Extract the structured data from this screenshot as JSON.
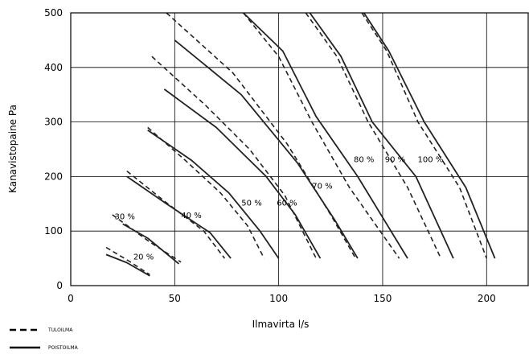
{
  "chart_data": {
    "type": "line",
    "title": "",
    "xlabel": "Ilmavirta l/s",
    "ylabel": "Kanavistopaine Pa",
    "xlim": [
      0,
      220
    ],
    "ylim": [
      0,
      500
    ],
    "x_ticks": [
      0,
      50,
      100,
      150,
      200
    ],
    "y_ticks": [
      0,
      100,
      200,
      300,
      400,
      500
    ],
    "x_tick_labels": [
      "0",
      "50",
      "100",
      "150",
      "200"
    ],
    "y_tick_labels": [
      "0",
      "100",
      "200",
      "300",
      "400",
      "500"
    ],
    "grid": true,
    "legend_position": "bottom-left",
    "legend": [
      {
        "label": "TULOILMA",
        "style": "dashed",
        "color": "#000000"
      },
      {
        "label": "POISTOILMA",
        "style": "solid",
        "color": "#000000"
      }
    ],
    "series": [
      {
        "name": "TULOILMA",
        "curve": "20 %",
        "style": "dashed",
        "x": [
          17,
          28,
          38
        ],
        "y": [
          70,
          45,
          20
        ]
      },
      {
        "name": "POISTOILMA",
        "curve": "20 %",
        "style": "solid",
        "x": [
          17,
          27,
          38
        ],
        "y": [
          57,
          42,
          18
        ]
      },
      {
        "name": "TULOILMA",
        "curve": "30 %",
        "style": "dashed",
        "x": [
          20,
          38,
          53
        ],
        "y": [
          130,
          80,
          43
        ]
      },
      {
        "name": "POISTOILMA",
        "curve": "30 %",
        "style": "solid",
        "x": [
          25,
          37,
          52
        ],
        "y": [
          113,
          87,
          40
        ]
      },
      {
        "name": "TULOILMA",
        "curve": "40 %",
        "style": "dashed",
        "x": [
          27,
          45,
          64,
          74
        ],
        "y": [
          210,
          155,
          100,
          50
        ]
      },
      {
        "name": "POISTOILMA",
        "curve": "40 %",
        "style": "solid",
        "x": [
          27,
          46,
          67,
          77
        ],
        "y": [
          200,
          150,
          97,
          50
        ]
      },
      {
        "name": "TULOILMA",
        "curve": "50 %",
        "style": "dashed",
        "x": [
          37,
          55,
          72,
          85,
          93
        ],
        "y": [
          290,
          230,
          170,
          110,
          50
        ]
      },
      {
        "name": "POISTOILMA",
        "curve": "50 %",
        "style": "solid",
        "x": [
          37,
          58,
          76,
          91,
          100
        ],
        "y": [
          285,
          230,
          170,
          100,
          50
        ]
      },
      {
        "name": "TULOILMA",
        "curve": "60 %",
        "style": "dashed",
        "x": [
          39,
          65,
          86,
          103,
          118
        ],
        "y": [
          420,
          330,
          250,
          165,
          50
        ]
      },
      {
        "name": "POISTOILMA",
        "curve": "60 %",
        "style": "solid",
        "x": [
          45,
          70,
          94,
          108,
          120
        ],
        "y": [
          360,
          290,
          200,
          130,
          50
        ]
      },
      {
        "name": "TULOILMA",
        "curve": "70 %",
        "style": "dashed",
        "x": [
          46,
          78,
          104,
          125,
          137
        ],
        "y": [
          500,
          390,
          260,
          130,
          50
        ]
      },
      {
        "name": "POISTOILMA",
        "curve": "70 %",
        "style": "solid",
        "x": [
          50,
          82,
          109,
          127,
          138
        ],
        "y": [
          450,
          350,
          225,
          120,
          50
        ]
      },
      {
        "name": "TULOILMA",
        "curve": "80 %",
        "style": "dashed",
        "x": [
          83,
          100,
          116,
          134,
          158
        ],
        "y": [
          500,
          420,
          300,
          180,
          50
        ]
      },
      {
        "name": "POISTOILMA",
        "curve": "80 %",
        "style": "solid",
        "x": [
          83,
          102,
          118,
          138,
          162
        ],
        "y": [
          500,
          430,
          310,
          200,
          50
        ]
      },
      {
        "name": "TULOILMA",
        "curve": "90 %",
        "style": "dashed",
        "x": [
          113,
          128,
          143,
          162,
          178
        ],
        "y": [
          500,
          420,
          300,
          180,
          50
        ]
      },
      {
        "name": "POISTOILMA",
        "curve": "90 %",
        "style": "solid",
        "x": [
          115,
          130,
          145,
          166,
          184
        ],
        "y": [
          500,
          420,
          300,
          200,
          50
        ]
      },
      {
        "name": "TULOILMA",
        "curve": "100 %",
        "style": "dashed",
        "x": [
          140,
          152,
          167,
          187,
          200
        ],
        "y": [
          500,
          430,
          300,
          180,
          50
        ]
      },
      {
        "name": "POISTOILMA",
        "curve": "100 %",
        "style": "solid",
        "x": [
          141,
          153,
          170,
          190,
          204
        ],
        "y": [
          500,
          430,
          300,
          180,
          50
        ]
      }
    ],
    "annotations": [
      {
        "text": "20 %",
        "x": 35,
        "y": 52
      },
      {
        "text": "30 %",
        "x": 26,
        "y": 126
      },
      {
        "text": "40 %",
        "x": 58,
        "y": 128
      },
      {
        "text": "50 %",
        "x": 87,
        "y": 151
      },
      {
        "text": "60 %",
        "x": 104,
        "y": 151
      },
      {
        "text": "70 %",
        "x": 121,
        "y": 182
      },
      {
        "text": "80 %",
        "x": 141,
        "y": 231
      },
      {
        "text": "90 %",
        "x": 156,
        "y": 231
      },
      {
        "text": "100 %",
        "x": 173,
        "y": 231
      }
    ]
  }
}
